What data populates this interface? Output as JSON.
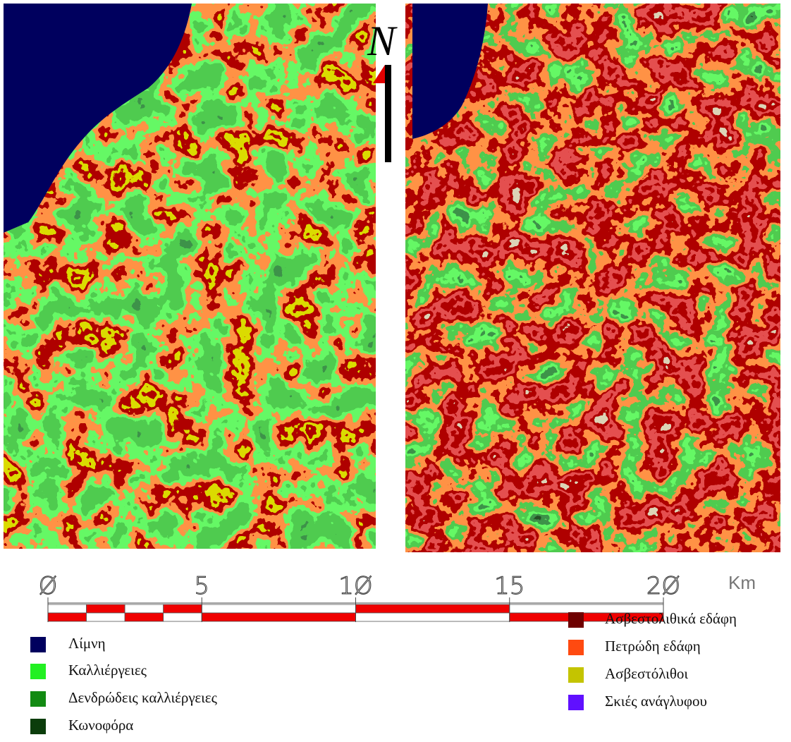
{
  "north_label": "N",
  "scale": {
    "labels": [
      "Ø",
      "5",
      "1Ø",
      "15",
      "2Ø"
    ],
    "unit": "Km"
  },
  "legend": {
    "left": [
      {
        "label": "Λίμνη",
        "color": "#00005e"
      },
      {
        "label": "Καλλιέργειες",
        "color": "#22f022"
      },
      {
        "label": "Δενδρώδεις καλλιέργειες",
        "color": "#128a12"
      },
      {
        "label": "Κωνοφόρα",
        "color": "#0b3d0b"
      }
    ],
    "right": [
      {
        "label": "Ασβεστολιθικά εδάφη",
        "color": "#6e0000"
      },
      {
        "label": "Πετρώδη εδάφη",
        "color": "#ff4a10"
      },
      {
        "label": "Ασβεστόλιθοι",
        "color": "#c4c400"
      },
      {
        "label": "Σκιές ανάγλυφου",
        "color": "#6010ff"
      }
    ]
  }
}
